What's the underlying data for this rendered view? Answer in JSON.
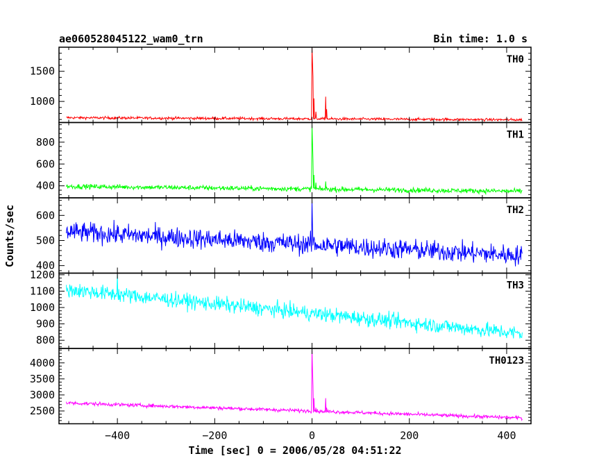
{
  "title": "ae060528045122_wam0_trn",
  "bin_time_label": "Bin time: 1.0 s",
  "xlabel": "Time [sec] 0 = 2006/05/28 04:51:22",
  "ylabel": "Counts/sec",
  "chart_data": [
    {
      "type": "line",
      "name": "TH0",
      "color": "#ff0000",
      "xlim": [
        -520,
        450
      ],
      "ylim": [
        650,
        1900
      ],
      "x_ticks": [
        -400,
        -200,
        0,
        200,
        400
      ],
      "y_ticks": [
        1000,
        1500
      ],
      "x_range": [
        -505,
        432
      ],
      "baseline": {
        "start": 730,
        "end": 695,
        "noise": 22
      },
      "peaks": [
        {
          "x": 0,
          "y": 1900
        },
        {
          "x": 1,
          "y": 1650
        },
        {
          "x": 2,
          "y": 1420
        },
        {
          "x": 4,
          "y": 1050
        },
        {
          "x": 8,
          "y": 830
        },
        {
          "x": 15,
          "y": 700
        },
        {
          "x": 28,
          "y": 1080
        },
        {
          "x": 30,
          "y": 870
        }
      ]
    },
    {
      "type": "line",
      "name": "TH1",
      "color": "#00ff00",
      "xlim": [
        -520,
        450
      ],
      "ylim": [
        290,
        980
      ],
      "x_ticks": [
        -400,
        -200,
        0,
        200,
        400
      ],
      "y_ticks": [
        400,
        600,
        800
      ],
      "x_range": [
        -505,
        432
      ],
      "baseline": {
        "start": 395,
        "end": 350,
        "noise": 22
      },
      "peaks": [
        {
          "x": 0,
          "y": 960
        },
        {
          "x": 1,
          "y": 800
        },
        {
          "x": 2,
          "y": 640
        },
        {
          "x": 4,
          "y": 500
        },
        {
          "x": 8,
          "y": 430
        },
        {
          "x": 28,
          "y": 440
        }
      ]
    },
    {
      "type": "line",
      "name": "TH2",
      "color": "#0000ff",
      "xlim": [
        -520,
        450
      ],
      "ylim": [
        370,
        670
      ],
      "x_ticks": [
        -400,
        -200,
        0,
        200,
        400
      ],
      "y_ticks": [
        400,
        500,
        600
      ],
      "x_range": [
        -505,
        432
      ],
      "baseline": {
        "start": 535,
        "end": 440,
        "noise": 40
      },
      "peaks": [
        {
          "x": 0,
          "y": 660
        },
        {
          "x": 1,
          "y": 560
        },
        {
          "x": 3,
          "y": 500
        }
      ]
    },
    {
      "type": "line",
      "name": "TH3",
      "color": "#00ffff",
      "xlim": [
        -520,
        450
      ],
      "ylim": [
        750,
        1210
      ],
      "x_ticks": [
        -400,
        -200,
        0,
        200,
        400
      ],
      "y_ticks": [
        800,
        900,
        1000,
        1100,
        1200
      ],
      "x_range": [
        -505,
        432
      ],
      "baseline": {
        "start": 1110,
        "end": 840,
        "noise": 45
      },
      "peaks": [
        {
          "x": 0,
          "y": 990
        },
        {
          "x": -400,
          "y": 1200
        }
      ]
    },
    {
      "type": "line",
      "name": "TH0123",
      "color": "#ff00ff",
      "xlim": [
        -520,
        450
      ],
      "ylim": [
        2100,
        4450
      ],
      "x_ticks": [
        -400,
        -200,
        0,
        200,
        400
      ],
      "y_ticks": [
        2500,
        3000,
        3500,
        4000
      ],
      "x_range": [
        -505,
        432
      ],
      "baseline": {
        "start": 2750,
        "end": 2280,
        "noise": 55
      },
      "peaks": [
        {
          "x": 0,
          "y": 4420
        },
        {
          "x": 1,
          "y": 3800
        },
        {
          "x": 2,
          "y": 3300
        },
        {
          "x": 4,
          "y": 2900
        },
        {
          "x": 8,
          "y": 2600
        },
        {
          "x": 28,
          "y": 2900
        },
        {
          "x": 30,
          "y": 2600
        }
      ]
    }
  ]
}
